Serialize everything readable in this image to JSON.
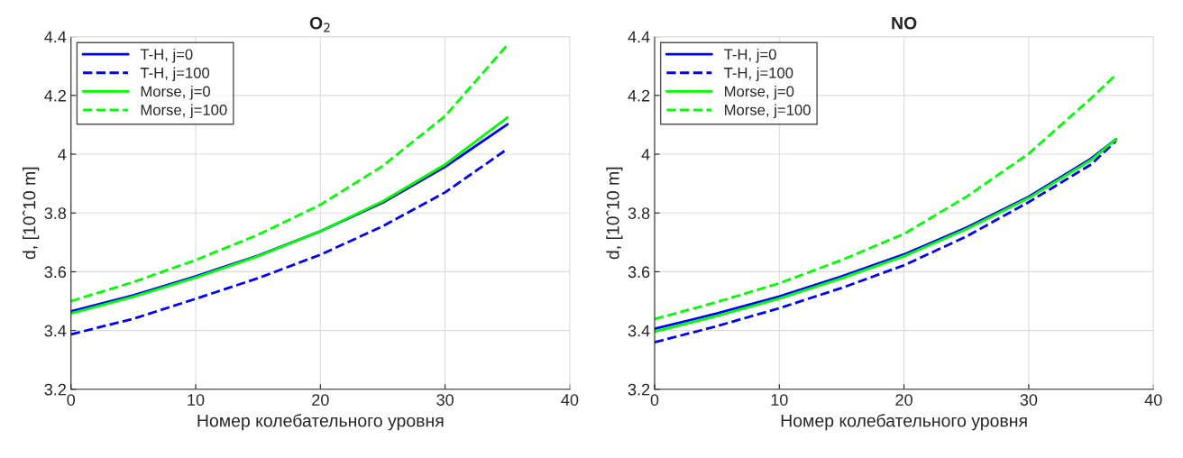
{
  "chart_data": [
    {
      "type": "line",
      "title": "O$_{2}$",
      "xlabel": "Номер колебательного уровня",
      "ylabel": "d, [10ˆ10 m]",
      "xlim": [
        0,
        40
      ],
      "xticks": [
        0,
        10,
        20,
        30,
        40
      ],
      "ylim": [
        3.2,
        4.4
      ],
      "yticks": [
        3.2,
        3.4,
        3.6,
        3.8,
        4,
        4.2,
        4.4
      ],
      "grid": true,
      "legend": "top left",
      "series": [
        {
          "name": "T-H, j=0",
          "color": "#0000ff",
          "line_style": "solid",
          "x": [
            0,
            5,
            10,
            15,
            20,
            25,
            30,
            35
          ],
          "values": [
            3.465,
            3.52,
            3.584,
            3.655,
            3.738,
            3.835,
            3.957,
            4.102
          ]
        },
        {
          "name": "T-H, j=100",
          "color": "#0000ff",
          "line_style": "dashed",
          "x": [
            0,
            5,
            10,
            15,
            20,
            25,
            30,
            35
          ],
          "values": [
            3.387,
            3.44,
            3.508,
            3.578,
            3.658,
            3.755,
            3.87,
            4.018
          ]
        },
        {
          "name": "Morse, j=0",
          "color": "#00ff00",
          "line_style": "solid",
          "x": [
            0,
            5,
            10,
            15,
            20,
            25,
            30,
            35
          ],
          "values": [
            3.458,
            3.515,
            3.58,
            3.653,
            3.738,
            3.84,
            3.965,
            4.125
          ]
        },
        {
          "name": "Morse, j=100",
          "color": "#00ff00",
          "line_style": "dashed",
          "x": [
            0,
            5,
            10,
            15,
            20,
            25,
            30,
            35
          ],
          "values": [
            3.5,
            3.565,
            3.64,
            3.726,
            3.828,
            3.96,
            4.13,
            4.372
          ]
        }
      ]
    },
    {
      "type": "line",
      "title": "NO",
      "xlabel": "Номер колебательного уровня",
      "ylabel": "d, [10ˆ10 m]",
      "xlim": [
        0,
        40
      ],
      "xticks": [
        0,
        10,
        20,
        30,
        40
      ],
      "ylim": [
        3.2,
        4.4
      ],
      "yticks": [
        3.2,
        3.4,
        3.6,
        3.8,
        4,
        4.2,
        4.4
      ],
      "grid": true,
      "legend": "top left",
      "series": [
        {
          "name": "T-H, j=0",
          "color": "#0000ff",
          "line_style": "solid",
          "x": [
            0,
            5,
            10,
            15,
            20,
            25,
            30,
            35,
            37
          ],
          "values": [
            3.406,
            3.458,
            3.516,
            3.584,
            3.659,
            3.75,
            3.855,
            3.985,
            4.051
          ]
        },
        {
          "name": "T-H, j=100",
          "color": "#0000ff",
          "line_style": "dashed",
          "x": [
            0,
            5,
            10,
            15,
            20,
            25,
            30,
            35,
            37
          ],
          "values": [
            3.36,
            3.415,
            3.476,
            3.545,
            3.622,
            3.72,
            3.837,
            3.965,
            4.045
          ]
        },
        {
          "name": "Morse, j=0",
          "color": "#00ff00",
          "line_style": "solid",
          "x": [
            0,
            5,
            10,
            15,
            20,
            25,
            30,
            35,
            37
          ],
          "values": [
            3.396,
            3.45,
            3.509,
            3.578,
            3.653,
            3.745,
            3.851,
            3.98,
            4.051
          ]
        },
        {
          "name": "Morse, j=100",
          "color": "#00ff00",
          "line_style": "dashed",
          "x": [
            0,
            5,
            10,
            15,
            20,
            25,
            30,
            35,
            37
          ],
          "values": [
            3.439,
            3.497,
            3.561,
            3.64,
            3.729,
            3.855,
            4.002,
            4.19,
            4.271
          ]
        }
      ]
    }
  ]
}
